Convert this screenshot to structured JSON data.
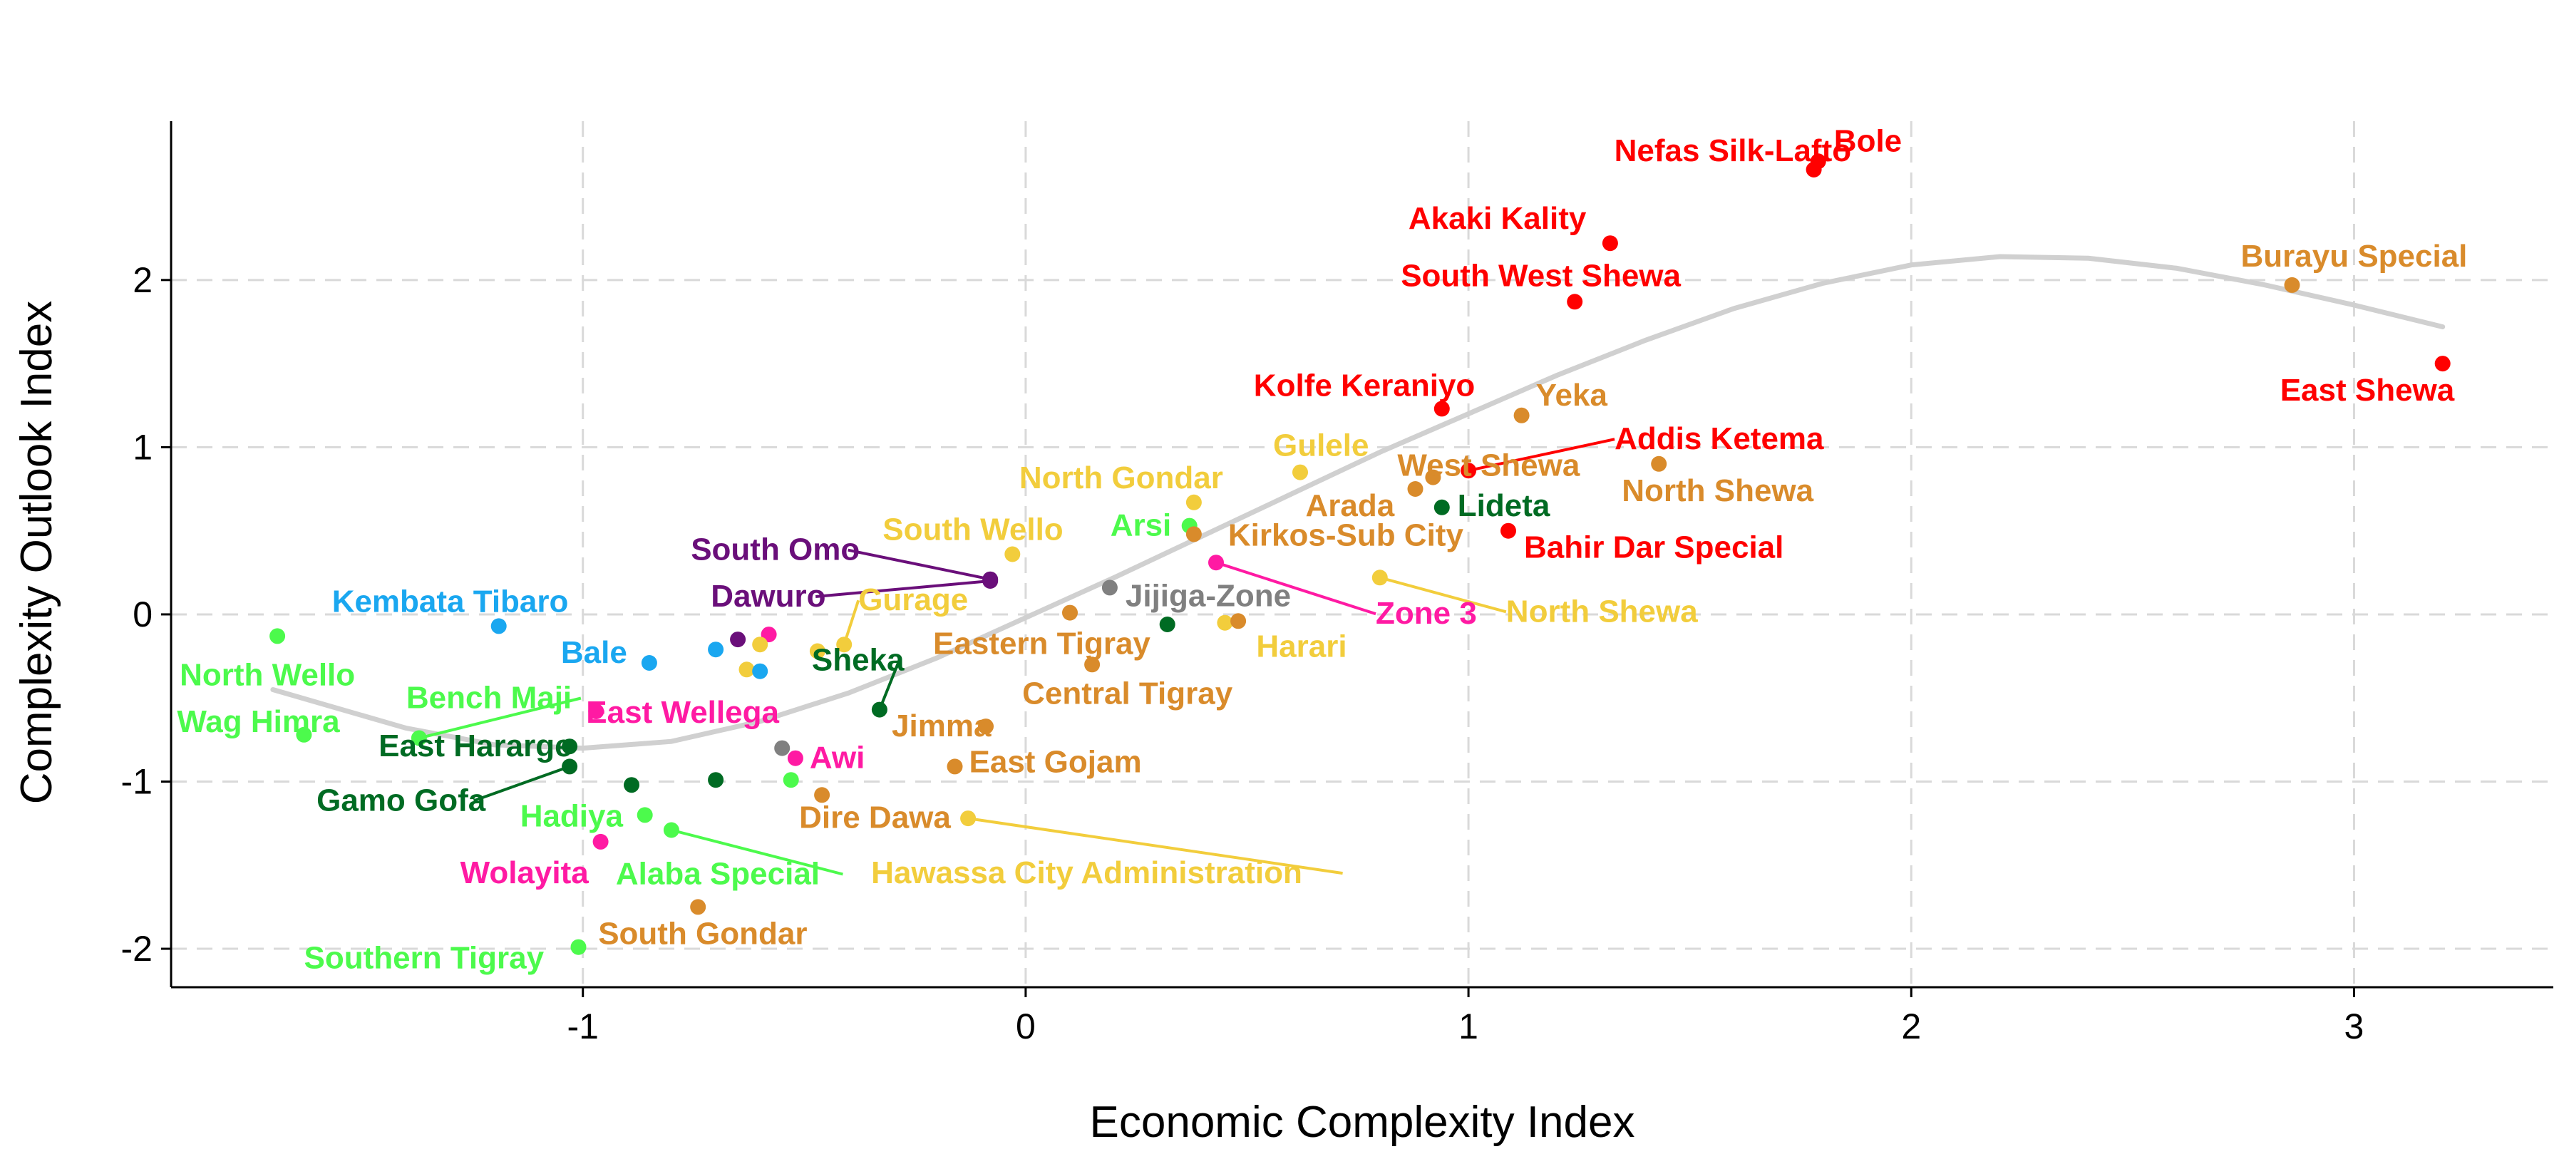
{
  "chart_data": {
    "type": "scatter",
    "title": "",
    "xlabel": "Economic Complexity Index",
    "ylabel": "Complexity Outlook Index",
    "xlim": [
      -1.93,
      3.45
    ],
    "ylim": [
      -2.23,
      2.95
    ],
    "xticks": [
      -1,
      0,
      1,
      2,
      3
    ],
    "yticks": [
      -2,
      -1,
      0,
      1,
      2
    ],
    "grid": true,
    "legend": "none",
    "colors": {
      "red": "#ff0000",
      "orange": "#d98b2b",
      "yellow": "#f2cd3c",
      "green": "#4cfa4c",
      "darkgreen": "#006b23",
      "blue": "#1aa7f0",
      "purple": "#6a0f7a",
      "magenta": "#ff1aa3",
      "gray": "#808080"
    },
    "trend": {
      "x": [
        -1.7,
        -1.4,
        -1.2,
        -1.0,
        -0.8,
        -0.6,
        -0.4,
        -0.2,
        0.0,
        0.2,
        0.4,
        0.6,
        0.8,
        1.0,
        1.2,
        1.4,
        1.6,
        1.8,
        2.0,
        2.2,
        2.4,
        2.6,
        2.8,
        3.0,
        3.2
      ],
      "y": [
        -0.45,
        -0.68,
        -0.78,
        -0.8,
        -0.76,
        -0.64,
        -0.47,
        -0.26,
        -0.02,
        0.22,
        0.47,
        0.72,
        0.97,
        1.2,
        1.43,
        1.64,
        1.83,
        1.98,
        2.09,
        2.14,
        2.13,
        2.07,
        1.97,
        1.85,
        1.72
      ]
    },
    "points": [
      {
        "label": "Bole",
        "x": 1.79,
        "y": 2.71,
        "color": "red"
      },
      {
        "label": "Nefas Silk-Lafto",
        "x": 1.78,
        "y": 2.66,
        "color": "red"
      },
      {
        "label": "Akaki Kality",
        "x": 1.32,
        "y": 2.22,
        "color": "red"
      },
      {
        "label": "South West Shewa",
        "x": 1.24,
        "y": 1.87,
        "color": "red"
      },
      {
        "label": "Burayu Special",
        "x": 2.86,
        "y": 1.97,
        "color": "orange"
      },
      {
        "label": "East Shewa",
        "x": 3.2,
        "y": 1.5,
        "color": "red"
      },
      {
        "label": "Kolfe Keraniyo",
        "x": 0.94,
        "y": 1.23,
        "color": "red"
      },
      {
        "label": "Yeka",
        "x": 1.12,
        "y": 1.19,
        "color": "orange"
      },
      {
        "label": "West Shewa",
        "x": 0.92,
        "y": 0.82,
        "color": "orange"
      },
      {
        "label": "Addis Ketema",
        "x": 1.0,
        "y": 0.86,
        "color": "red"
      },
      {
        "label": "Gulele",
        "x": 0.62,
        "y": 0.85,
        "color": "yellow"
      },
      {
        "label": "North Shewa",
        "x": 1.43,
        "y": 0.9,
        "color": "orange"
      },
      {
        "label": "Arada",
        "x": 0.88,
        "y": 0.75,
        "color": "orange"
      },
      {
        "label": "Lideta",
        "x": 0.94,
        "y": 0.64,
        "color": "darkgreen"
      },
      {
        "label": "North Gondar",
        "x": 0.38,
        "y": 0.67,
        "color": "yellow"
      },
      {
        "label": "Bahir Dar Special",
        "x": 1.09,
        "y": 0.5,
        "color": "red"
      },
      {
        "label": "Arsi",
        "x": 0.37,
        "y": 0.53,
        "color": "green"
      },
      {
        "label": "South Wello",
        "x": -0.03,
        "y": 0.36,
        "color": "yellow"
      },
      {
        "label": "Kirkos-Sub City",
        "x": 0.38,
        "y": 0.48,
        "color": "orange"
      },
      {
        "label": "South Omo",
        "x": -0.08,
        "y": 0.21,
        "color": "purple"
      },
      {
        "label": "Zone 3",
        "x": 0.43,
        "y": 0.31,
        "color": "magenta"
      },
      {
        "label": "North Shewa",
        "x": 0.8,
        "y": 0.22,
        "color": "yellow"
      },
      {
        "label": "Dawuro",
        "x": -0.08,
        "y": 0.2,
        "color": "purple"
      },
      {
        "label": "Jijiga-Zone",
        "x": 0.19,
        "y": 0.16,
        "color": "gray"
      },
      {
        "label": "Gurage",
        "x": -0.41,
        "y": -0.18,
        "color": "yellow"
      },
      {
        "label": "Kembata Tibaro",
        "x": -1.19,
        "y": -0.07,
        "color": "blue"
      },
      {
        "label": "Harari",
        "x": 0.45,
        "y": -0.05,
        "color": "yellow"
      },
      {
        "label": "Eastern Tigray",
        "x": 0.1,
        "y": 0.01,
        "color": "orange"
      },
      {
        "label": "North Wello",
        "x": -1.69,
        "y": -0.13,
        "color": "green"
      },
      {
        "label": "Bale",
        "x": -0.85,
        "y": -0.29,
        "color": "blue"
      },
      {
        "label": "Sheka",
        "x": -0.33,
        "y": -0.57,
        "color": "darkgreen"
      },
      {
        "label": "Central Tigray",
        "x": 0.15,
        "y": -0.3,
        "color": "orange"
      },
      {
        "label": "East Wellega",
        "x": -0.97,
        "y": -0.58,
        "color": "magenta"
      },
      {
        "label": "Jimma",
        "x": -0.09,
        "y": -0.67,
        "color": "orange"
      },
      {
        "label": "Bench Maji",
        "x": -1.37,
        "y": -0.74,
        "color": "green"
      },
      {
        "label": "Wag Himra",
        "x": -1.63,
        "y": -0.72,
        "color": "green"
      },
      {
        "label": "East Hararge",
        "x": -1.03,
        "y": -0.79,
        "color": "darkgreen"
      },
      {
        "label": "Awi",
        "x": -0.52,
        "y": -0.86,
        "color": "magenta"
      },
      {
        "label": "East Gojam",
        "x": -0.16,
        "y": -0.91,
        "color": "orange"
      },
      {
        "label": "Gamo Gofa",
        "x": -1.03,
        "y": -0.91,
        "color": "darkgreen"
      },
      {
        "label": "Hadiya",
        "x": -0.86,
        "y": -1.2,
        "color": "green"
      },
      {
        "label": "Dire Dawa",
        "x": -0.46,
        "y": -1.08,
        "color": "orange"
      },
      {
        "label": "Hawassa City Administration",
        "x": -0.13,
        "y": -1.22,
        "color": "yellow"
      },
      {
        "label": "Alaba Special",
        "x": -0.8,
        "y": -1.29,
        "color": "green"
      },
      {
        "label": "Wolayita",
        "x": -0.96,
        "y": -1.36,
        "color": "magenta"
      },
      {
        "label": "South Gondar",
        "x": -0.74,
        "y": -1.75,
        "color": "orange"
      },
      {
        "label": "Southern Tigray",
        "x": -1.01,
        "y": -1.99,
        "color": "green"
      },
      {
        "label": "",
        "x": -0.65,
        "y": -0.15,
        "color": "purple"
      },
      {
        "label": "",
        "x": -0.58,
        "y": -0.12,
        "color": "magenta"
      },
      {
        "label": "",
        "x": -0.6,
        "y": -0.18,
        "color": "yellow"
      },
      {
        "label": "",
        "x": -0.7,
        "y": -0.21,
        "color": "blue"
      },
      {
        "label": "",
        "x": -0.63,
        "y": -0.33,
        "color": "yellow"
      },
      {
        "label": "",
        "x": -0.6,
        "y": -0.34,
        "color": "blue"
      },
      {
        "label": "",
        "x": -0.47,
        "y": -0.22,
        "color": "yellow"
      },
      {
        "label": "",
        "x": -0.55,
        "y": -0.8,
        "color": "gray"
      },
      {
        "label": "",
        "x": -0.89,
        "y": -1.02,
        "color": "darkgreen"
      },
      {
        "label": "",
        "x": -0.7,
        "y": -0.99,
        "color": "darkgreen"
      },
      {
        "label": "",
        "x": -0.53,
        "y": -0.99,
        "color": "green"
      },
      {
        "label": "",
        "x": 0.32,
        "y": -0.06,
        "color": "darkgreen"
      },
      {
        "label": "",
        "x": 0.48,
        "y": -0.04,
        "color": "orange"
      }
    ]
  }
}
